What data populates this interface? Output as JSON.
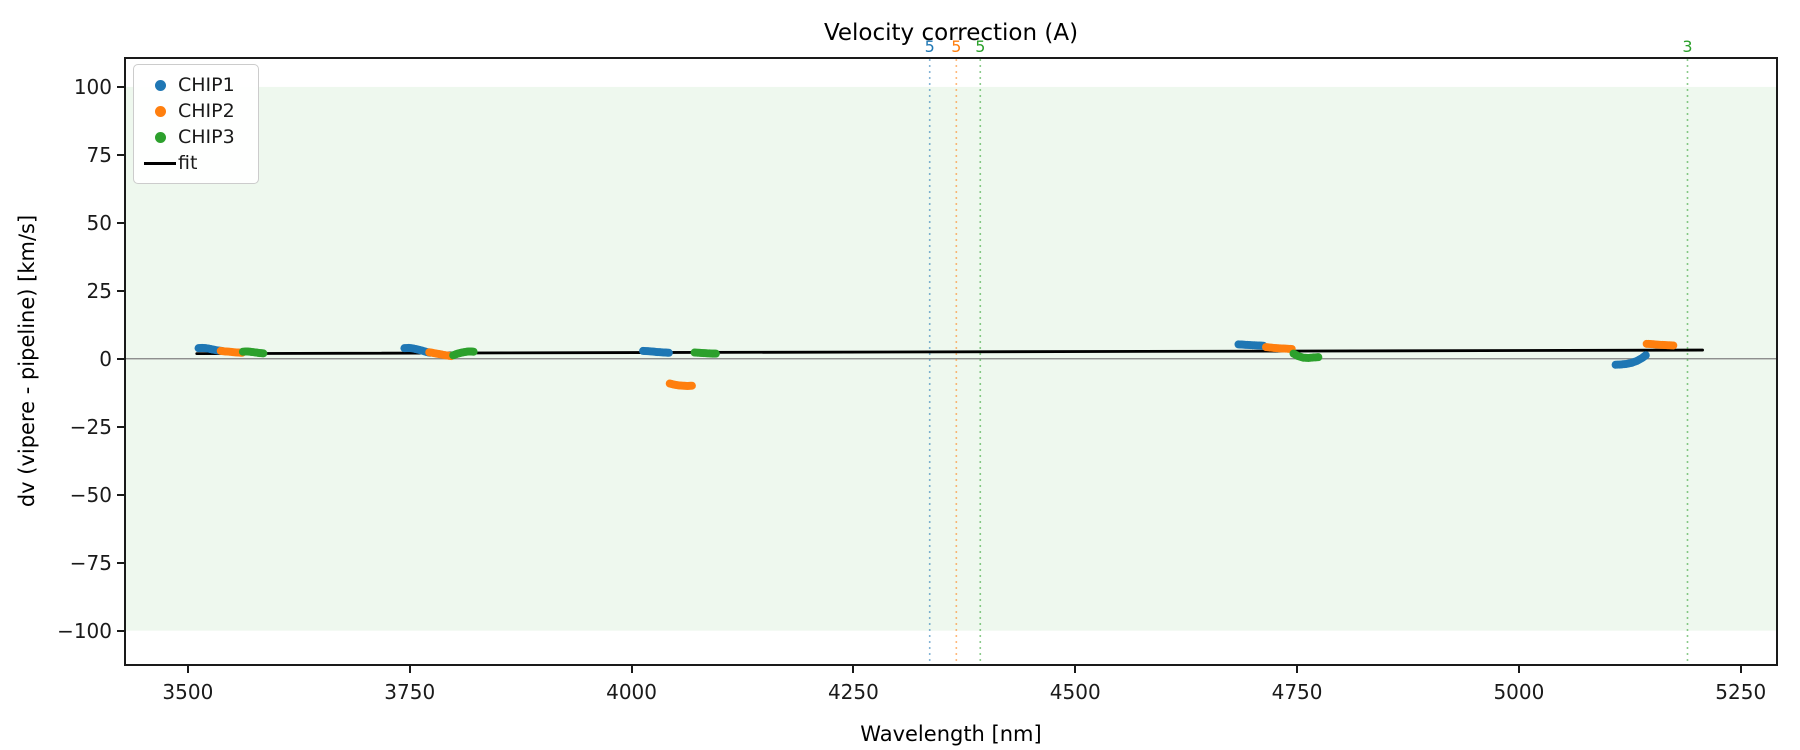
{
  "chart_data": {
    "type": "scatter",
    "title": "Velocity correction (A)",
    "x_axis": {
      "label": "Wavelength [nm]",
      "range": [
        3428,
        5292
      ],
      "ticks": [
        3500,
        3750,
        4000,
        4250,
        4500,
        4750,
        5000,
        5250
      ],
      "tick_labels": [
        "3500",
        "3750",
        "4000",
        "4250",
        "4500",
        "4750",
        "5000",
        "5250"
      ]
    },
    "y_axis": {
      "label": "dv (vipere - pipeline) [km/s]",
      "range": [
        -113,
        111
      ],
      "ticks": [
        100,
        75,
        50,
        25,
        0,
        -25,
        -50,
        -75,
        -100
      ],
      "tick_labels": [
        "100",
        "75",
        "50",
        "25",
        "0",
        "−25",
        "−50",
        "−75",
        "−100"
      ]
    },
    "shaded_band": {
      "ymin": -100,
      "ymax": 100,
      "color": "#2ca02c",
      "opacity": 0.08
    },
    "zero_line": {
      "y": 0,
      "color": "#808080"
    },
    "grid": "off",
    "legend_position": "upper-left",
    "series": [
      {
        "name": "CHIP1",
        "color": "#1f77b4",
        "segments": [
          [
            [
              3512,
              3.9
            ],
            [
              3516,
              4.0
            ],
            [
              3520,
              3.9
            ],
            [
              3524,
              3.7
            ],
            [
              3528,
              3.4
            ],
            [
              3533,
              3.1
            ],
            [
              3538,
              2.9
            ]
          ],
          [
            [
              3744,
              3.9
            ],
            [
              3749,
              4.0
            ],
            [
              3754,
              3.8
            ],
            [
              3759,
              3.4
            ],
            [
              3764,
              3.0
            ],
            [
              3769,
              2.5
            ],
            [
              3773,
              2.2
            ]
          ],
          [
            [
              4013,
              2.9
            ],
            [
              4018,
              2.8
            ],
            [
              4023,
              2.7
            ],
            [
              4028,
              2.5
            ],
            [
              4033,
              2.4
            ],
            [
              4038,
              2.3
            ],
            [
              4042,
              2.2
            ]
          ],
          [
            [
              4684,
              5.3
            ],
            [
              4689,
              5.2
            ],
            [
              4694,
              5.1
            ],
            [
              4700,
              5.0
            ],
            [
              4706,
              4.9
            ],
            [
              4712,
              4.8
            ]
          ],
          [
            [
              5109,
              -2.2
            ],
            [
              5115,
              -2.1
            ],
            [
              5121,
              -1.9
            ],
            [
              5127,
              -1.5
            ],
            [
              5133,
              -0.8
            ],
            [
              5139,
              0.3
            ],
            [
              5143,
              1.3
            ]
          ]
        ]
      },
      {
        "name": "CHIP2",
        "color": "#ff7f0e",
        "segments": [
          [
            [
              3537,
              2.9
            ],
            [
              3542,
              2.7
            ],
            [
              3547,
              2.6
            ],
            [
              3552,
              2.4
            ],
            [
              3557,
              2.3
            ],
            [
              3561,
              2.2
            ]
          ],
          [
            [
              3772,
              2.4
            ],
            [
              3777,
              2.1
            ],
            [
              3782,
              1.8
            ],
            [
              3787,
              1.5
            ],
            [
              3792,
              1.2
            ],
            [
              3797,
              1.0
            ]
          ],
          [
            [
              4043,
              -9.1
            ],
            [
              4048,
              -9.5
            ],
            [
              4053,
              -9.8
            ],
            [
              4058,
              -9.9
            ],
            [
              4063,
              -10.0
            ],
            [
              4068,
              -9.9
            ]
          ],
          [
            [
              4715,
              4.3
            ],
            [
              4721,
              4.1
            ],
            [
              4727,
              3.9
            ],
            [
              4733,
              3.8
            ],
            [
              4739,
              3.7
            ],
            [
              4744,
              3.6
            ]
          ],
          [
            [
              5144,
              5.5
            ],
            [
              5150,
              5.4
            ],
            [
              5156,
              5.2
            ],
            [
              5162,
              5.1
            ],
            [
              5168,
              5.0
            ],
            [
              5174,
              4.9
            ]
          ]
        ]
      },
      {
        "name": "CHIP3",
        "color": "#2ca02c",
        "segments": [
          [
            [
              3562,
              2.6
            ],
            [
              3567,
              2.7
            ],
            [
              3572,
              2.5
            ],
            [
              3577,
              2.3
            ],
            [
              3581,
              2.1
            ],
            [
              3585,
              2.0
            ]
          ],
          [
            [
              3799,
              1.3
            ],
            [
              3804,
              1.9
            ],
            [
              3809,
              2.3
            ],
            [
              3814,
              2.6
            ],
            [
              3818,
              2.7
            ],
            [
              3822,
              2.6
            ]
          ],
          [
            [
              4071,
              2.3
            ],
            [
              4076,
              2.2
            ],
            [
              4081,
              2.1
            ],
            [
              4086,
              2.0
            ],
            [
              4091,
              1.9
            ],
            [
              4095,
              1.9
            ]
          ],
          [
            [
              4746,
              1.9
            ],
            [
              4751,
              1.0
            ],
            [
              4757,
              0.4
            ],
            [
              4763,
              0.3
            ],
            [
              4769,
              0.5
            ],
            [
              4774,
              0.6
            ]
          ]
        ]
      }
    ],
    "fit": {
      "name": "fit",
      "color": "#000000",
      "x": [
        3510,
        5207
      ],
      "y": [
        1.9,
        3.2
      ]
    },
    "vlines": [
      {
        "x": 4336,
        "label": "5",
        "color": "#1f77b4"
      },
      {
        "x": 4366,
        "label": "5",
        "color": "#ff7f0e"
      },
      {
        "x": 4393,
        "label": "5",
        "color": "#2ca02c"
      },
      {
        "x": 5190,
        "label": "3",
        "color": "#2ca02c"
      }
    ]
  }
}
